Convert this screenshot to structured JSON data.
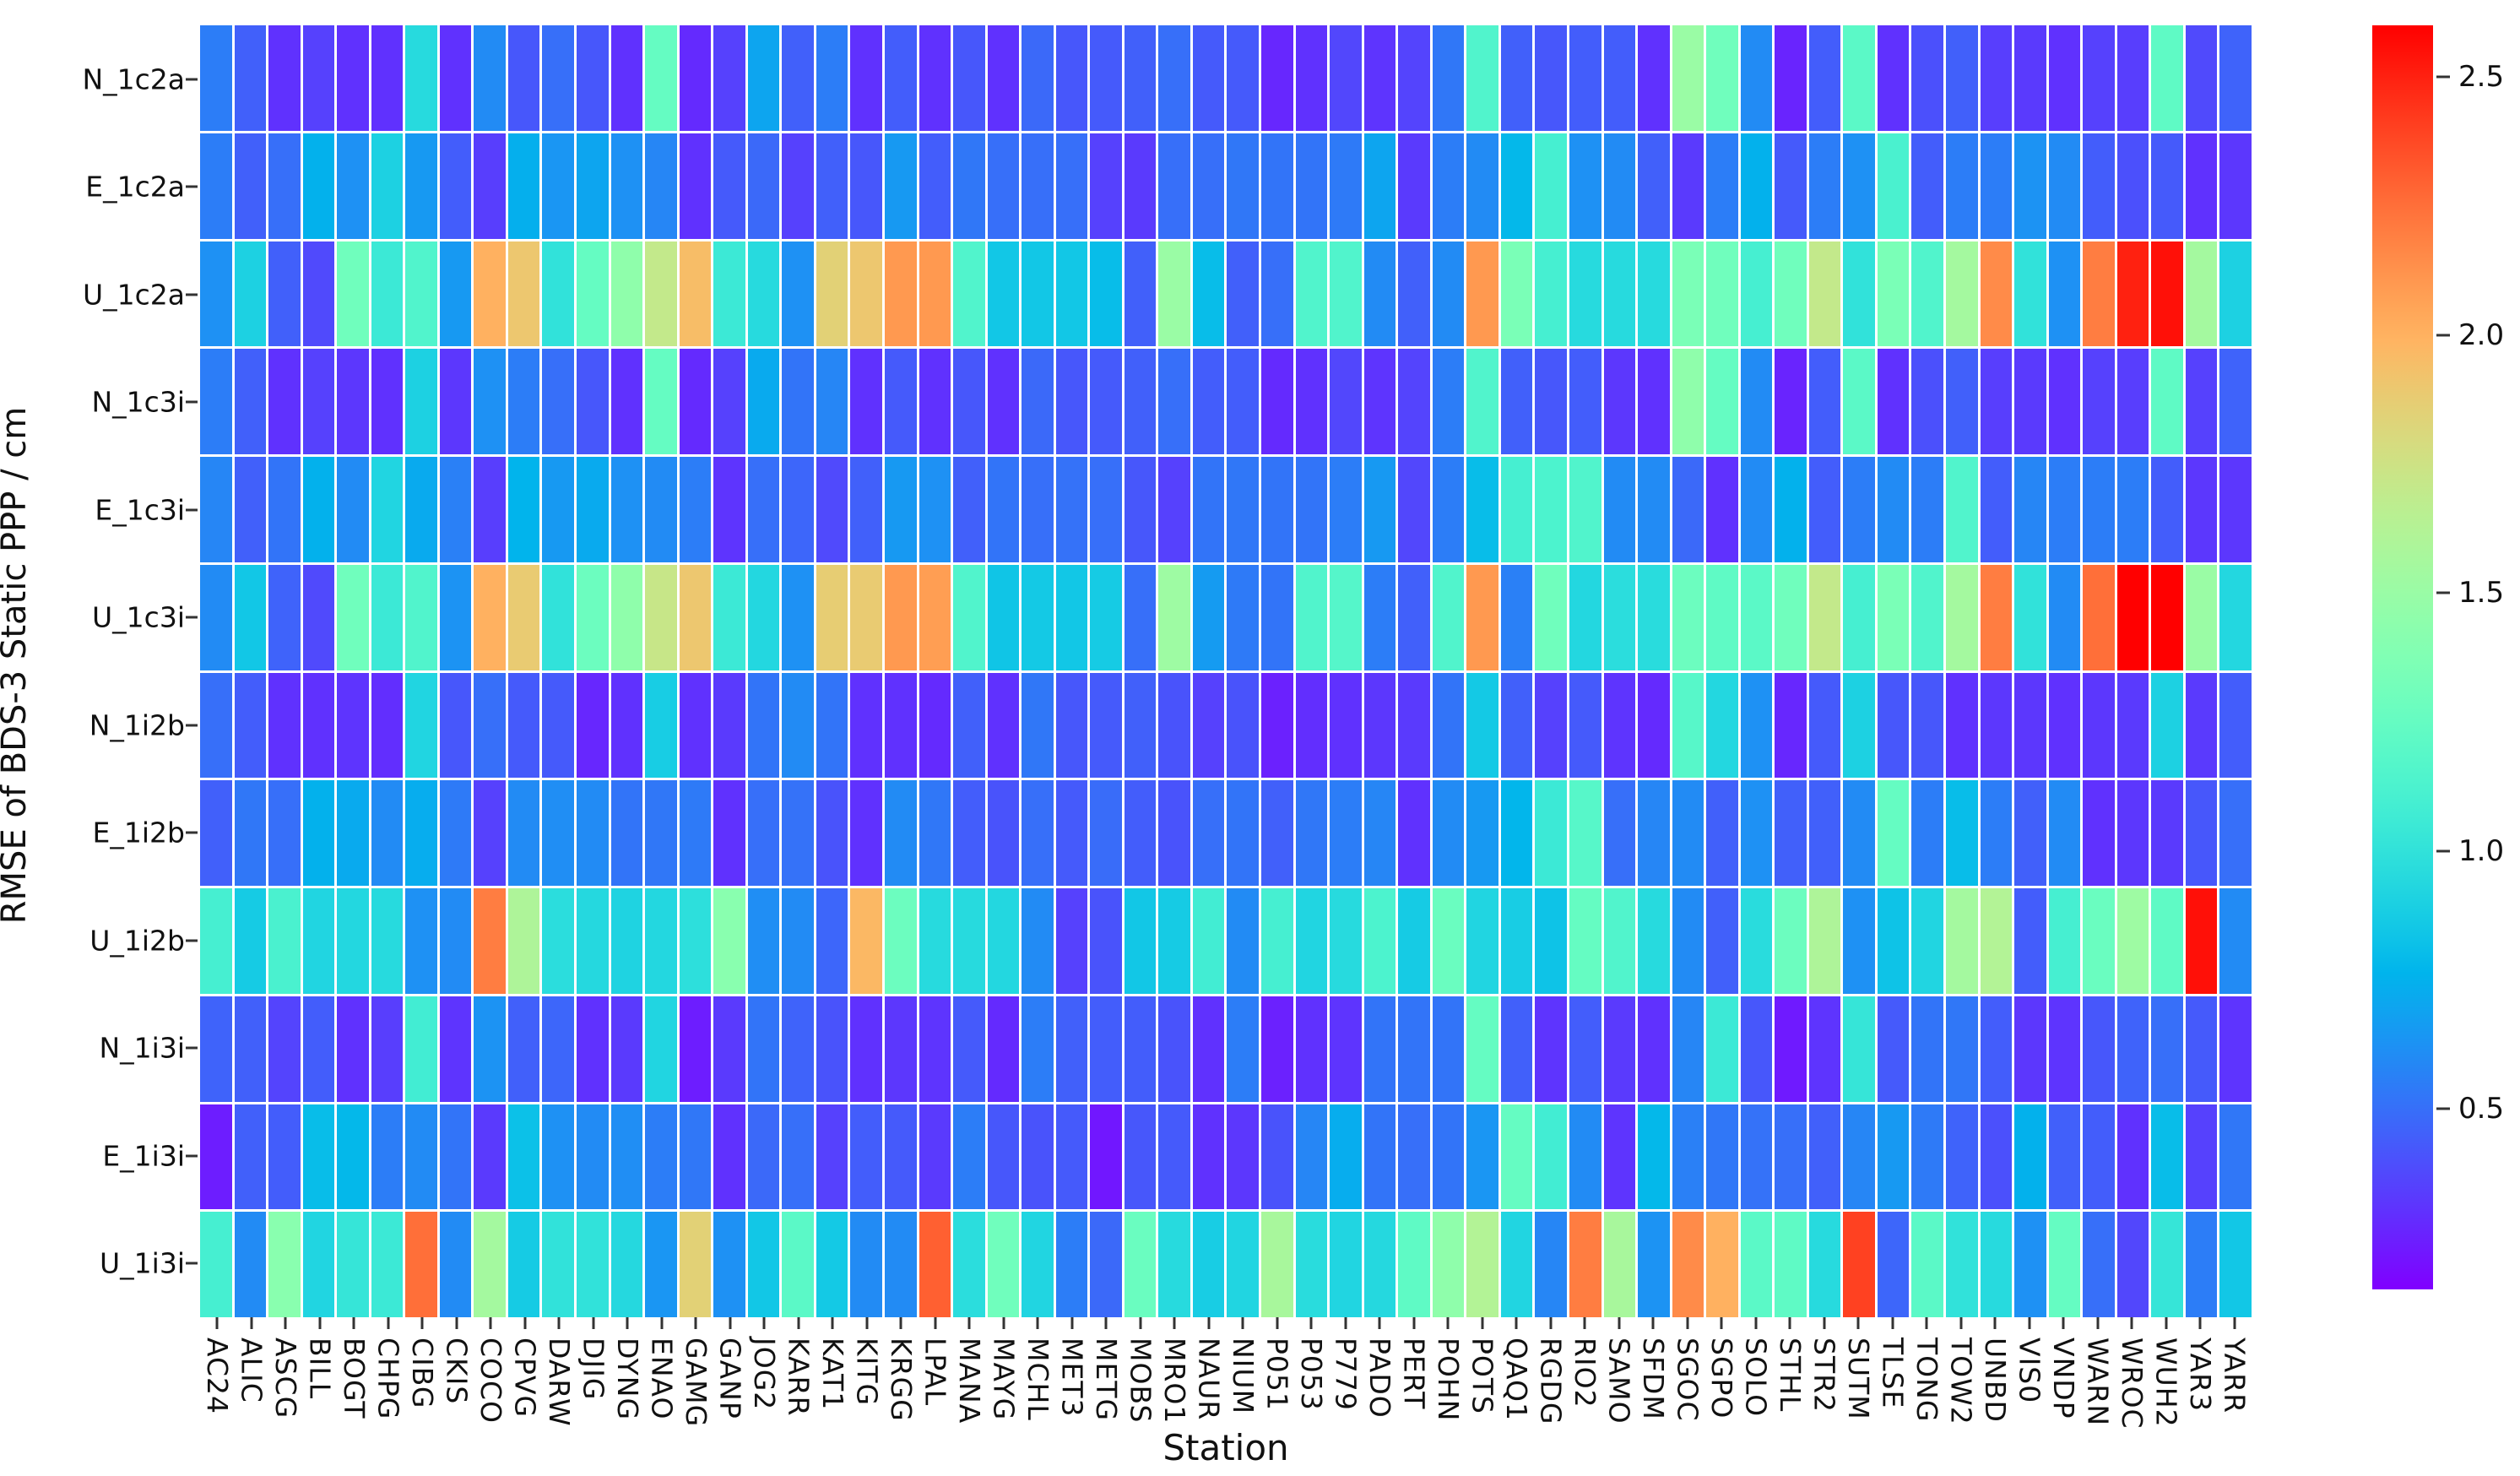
{
  "chart_data": {
    "type": "heatmap",
    "title": "",
    "xlabel": "Station",
    "ylabel": "RMSE of BDS-3 Static PPP / cm",
    "colormap": "rainbow",
    "vlim": [
      0.15,
      2.6
    ],
    "colorbar_ticks": [
      0.5,
      1.0,
      1.5,
      2.0,
      2.5
    ],
    "grid_line_color": "#ffffff",
    "background": "#ffffff",
    "legend_position": "right-colorbar",
    "x_categories": [
      "AC24",
      "ALIC",
      "ASCG",
      "BILL",
      "BOGT",
      "CHPG",
      "CIBG",
      "CKIS",
      "COCO",
      "CPVG",
      "DARW",
      "DJIG",
      "DYNG",
      "ENAO",
      "GAMG",
      "GANP",
      "JOG2",
      "KARR",
      "KAT1",
      "KITG",
      "KRGG",
      "LPAL",
      "MANA",
      "MAYG",
      "MCHL",
      "MET3",
      "METG",
      "MOBS",
      "MRO1",
      "NAUR",
      "NIUM",
      "P051",
      "P053",
      "P779",
      "PADO",
      "PERT",
      "POHN",
      "POTS",
      "QAQ1",
      "RGDG",
      "RIO2",
      "SAMO",
      "SFDM",
      "SGOC",
      "SGPO",
      "SOLO",
      "STHL",
      "STR2",
      "SUTM",
      "TLSE",
      "TONG",
      "TOW2",
      "UNBD",
      "VIS0",
      "VNDP",
      "WARN",
      "WROC",
      "WUH2",
      "YAR3",
      "YARR"
    ],
    "y_categories": [
      "N_1c2a",
      "E_1c2a",
      "U_1c2a",
      "N_1c3i",
      "E_1c3i",
      "U_1c3i",
      "N_1i2b",
      "E_1i2b",
      "U_1i2b",
      "N_1i3i",
      "E_1i3i",
      "U_1i3i"
    ],
    "values": [
      [
        0.55,
        0.45,
        0.3,
        0.35,
        0.3,
        0.3,
        0.95,
        0.3,
        0.6,
        0.42,
        0.5,
        0.42,
        0.3,
        1.25,
        0.28,
        0.35,
        0.7,
        0.45,
        0.55,
        0.3,
        0.44,
        0.3,
        0.42,
        0.3,
        0.48,
        0.42,
        0.43,
        0.45,
        0.5,
        0.43,
        0.43,
        0.27,
        0.3,
        0.37,
        0.31,
        0.36,
        0.53,
        1.15,
        0.45,
        0.42,
        0.44,
        0.44,
        0.3,
        1.5,
        1.3,
        0.6,
        0.26,
        0.44,
        1.2,
        0.3,
        0.4,
        0.45,
        0.34,
        0.33,
        0.3,
        0.35,
        0.34,
        1.22,
        0.38,
        0.46
      ],
      [
        0.55,
        0.45,
        0.5,
        0.75,
        0.62,
        0.9,
        0.65,
        0.44,
        0.34,
        0.74,
        0.64,
        0.7,
        0.62,
        0.58,
        0.3,
        0.43,
        0.48,
        0.35,
        0.45,
        0.42,
        0.65,
        0.44,
        0.53,
        0.5,
        0.5,
        0.5,
        0.35,
        0.33,
        0.5,
        0.5,
        0.53,
        0.52,
        0.52,
        0.54,
        0.7,
        0.33,
        0.55,
        0.6,
        0.78,
        1.1,
        0.62,
        0.6,
        0.45,
        0.33,
        0.55,
        0.75,
        0.43,
        0.55,
        0.62,
        1.12,
        0.44,
        0.55,
        0.55,
        0.63,
        0.6,
        0.44,
        0.4,
        0.43,
        0.3,
        0.32
      ],
      [
        0.62,
        0.9,
        0.45,
        0.38,
        1.3,
        1.05,
        1.15,
        0.65,
        2.0,
        1.9,
        1.0,
        1.25,
        1.45,
        1.7,
        1.95,
        1.05,
        0.95,
        0.62,
        1.85,
        1.9,
        2.1,
        2.1,
        1.15,
        0.85,
        0.85,
        0.85,
        0.8,
        0.45,
        1.5,
        0.8,
        0.45,
        0.5,
        1.15,
        1.15,
        0.6,
        0.45,
        0.6,
        2.1,
        1.35,
        1.1,
        0.95,
        0.95,
        0.95,
        1.35,
        1.3,
        1.1,
        1.3,
        1.7,
        1.0,
        1.35,
        1.15,
        1.55,
        2.15,
        1.0,
        0.62,
        2.2,
        2.5,
        2.55,
        1.55,
        0.9
      ],
      [
        0.55,
        0.45,
        0.3,
        0.35,
        0.32,
        0.3,
        0.9,
        0.32,
        0.62,
        0.55,
        0.5,
        0.42,
        0.3,
        1.25,
        0.28,
        0.35,
        0.72,
        0.52,
        0.58,
        0.3,
        0.43,
        0.3,
        0.42,
        0.3,
        0.48,
        0.42,
        0.43,
        0.45,
        0.5,
        0.44,
        0.44,
        0.28,
        0.3,
        0.37,
        0.31,
        0.36,
        0.55,
        1.15,
        0.45,
        0.42,
        0.44,
        0.32,
        0.3,
        1.45,
        1.25,
        0.6,
        0.26,
        0.44,
        1.2,
        0.3,
        0.4,
        0.45,
        0.34,
        0.33,
        0.3,
        0.35,
        0.34,
        1.22,
        0.35,
        0.46
      ],
      [
        0.58,
        0.45,
        0.52,
        0.75,
        0.6,
        0.92,
        0.72,
        0.56,
        0.34,
        0.76,
        0.65,
        0.72,
        0.62,
        0.6,
        0.55,
        0.31,
        0.5,
        0.47,
        0.38,
        0.45,
        0.65,
        0.62,
        0.45,
        0.52,
        0.5,
        0.51,
        0.5,
        0.42,
        0.35,
        0.52,
        0.53,
        0.52,
        0.52,
        0.55,
        0.65,
        0.37,
        0.55,
        0.8,
        1.1,
        1.13,
        1.15,
        0.6,
        0.6,
        0.48,
        0.3,
        0.6,
        0.75,
        0.44,
        0.55,
        0.6,
        0.55,
        1.15,
        0.44,
        0.58,
        0.55,
        0.55,
        0.55,
        0.44,
        0.32,
        0.32
      ],
      [
        0.6,
        0.85,
        0.46,
        0.38,
        1.3,
        1.05,
        1.15,
        0.63,
        2.0,
        1.88,
        1.0,
        1.28,
        1.45,
        1.72,
        1.9,
        1.05,
        0.93,
        0.62,
        1.87,
        1.88,
        2.1,
        2.08,
        1.15,
        0.84,
        0.86,
        0.85,
        0.87,
        0.5,
        1.52,
        0.66,
        0.54,
        0.52,
        1.15,
        1.17,
        0.55,
        0.45,
        1.15,
        2.1,
        0.56,
        1.3,
        0.93,
        0.97,
        0.96,
        1.28,
        1.22,
        1.2,
        1.3,
        1.7,
        1.1,
        1.35,
        1.15,
        1.55,
        2.2,
        1.0,
        0.6,
        2.25,
        2.6,
        2.6,
        1.5,
        0.93
      ],
      [
        0.5,
        0.44,
        0.3,
        0.3,
        0.31,
        0.29,
        0.92,
        0.42,
        0.5,
        0.43,
        0.43,
        0.27,
        0.3,
        0.88,
        0.3,
        0.33,
        0.52,
        0.6,
        0.52,
        0.3,
        0.3,
        0.28,
        0.45,
        0.3,
        0.53,
        0.42,
        0.43,
        0.45,
        0.41,
        0.35,
        0.41,
        0.25,
        0.29,
        0.3,
        0.32,
        0.33,
        0.52,
        0.86,
        0.45,
        0.35,
        0.43,
        0.31,
        0.28,
        1.18,
        0.93,
        0.62,
        0.27,
        0.43,
        0.9,
        0.42,
        0.42,
        0.3,
        0.32,
        0.32,
        0.3,
        0.32,
        0.33,
        0.9,
        0.33,
        0.44
      ],
      [
        0.45,
        0.53,
        0.5,
        0.75,
        0.72,
        0.6,
        0.73,
        0.54,
        0.35,
        0.6,
        0.61,
        0.6,
        0.52,
        0.53,
        0.54,
        0.3,
        0.5,
        0.51,
        0.41,
        0.3,
        0.6,
        0.53,
        0.44,
        0.41,
        0.5,
        0.43,
        0.49,
        0.44,
        0.41,
        0.5,
        0.52,
        0.45,
        0.53,
        0.55,
        0.58,
        0.3,
        0.6,
        0.65,
        0.77,
        1.05,
        1.18,
        0.5,
        0.58,
        0.6,
        0.45,
        0.62,
        0.45,
        0.45,
        0.6,
        1.25,
        0.55,
        0.8,
        0.55,
        0.45,
        0.6,
        0.3,
        0.32,
        0.33,
        0.42,
        0.5
      ],
      [
        1.1,
        0.87,
        1.12,
        0.92,
        0.93,
        0.95,
        0.62,
        0.6,
        2.2,
        1.6,
        0.97,
        0.94,
        0.91,
        0.93,
        0.98,
        1.42,
        0.61,
        0.6,
        0.47,
        1.97,
        1.28,
        0.95,
        0.95,
        0.93,
        0.6,
        0.35,
        0.41,
        0.85,
        0.87,
        1.08,
        0.6,
        1.1,
        0.92,
        0.95,
        1.13,
        0.87,
        1.27,
        0.92,
        0.88,
        0.83,
        1.25,
        1.15,
        0.95,
        0.6,
        0.45,
        0.96,
        1.28,
        1.6,
        0.62,
        0.83,
        0.92,
        1.55,
        1.62,
        0.44,
        1.1,
        1.27,
        1.52,
        1.22,
        2.55,
        0.6
      ],
      [
        0.46,
        0.45,
        0.36,
        0.44,
        0.3,
        0.34,
        1.08,
        0.31,
        0.63,
        0.45,
        0.47,
        0.3,
        0.33,
        0.92,
        0.24,
        0.33,
        0.52,
        0.46,
        0.41,
        0.3,
        0.32,
        0.31,
        0.43,
        0.28,
        0.55,
        0.45,
        0.44,
        0.44,
        0.41,
        0.3,
        0.55,
        0.25,
        0.3,
        0.31,
        0.52,
        0.52,
        0.52,
        1.25,
        0.45,
        0.31,
        0.44,
        0.33,
        0.3,
        0.58,
        1.05,
        0.42,
        0.23,
        0.31,
        1.02,
        0.43,
        0.52,
        0.53,
        0.44,
        0.32,
        0.31,
        0.42,
        0.46,
        0.5,
        0.43,
        0.31
      ],
      [
        0.24,
        0.45,
        0.44,
        0.8,
        0.78,
        0.55,
        0.6,
        0.52,
        0.33,
        0.82,
        0.62,
        0.6,
        0.61,
        0.55,
        0.53,
        0.3,
        0.48,
        0.5,
        0.35,
        0.44,
        0.43,
        0.33,
        0.55,
        0.42,
        0.41,
        0.43,
        0.22,
        0.42,
        0.43,
        0.3,
        0.32,
        0.41,
        0.58,
        0.73,
        0.52,
        0.5,
        0.52,
        0.64,
        1.25,
        1.08,
        0.6,
        0.31,
        0.78,
        0.56,
        0.53,
        0.51,
        0.5,
        0.45,
        0.58,
        0.65,
        0.54,
        0.46,
        0.4,
        0.75,
        0.45,
        0.44,
        0.3,
        0.8,
        0.35,
        0.53
      ],
      [
        1.1,
        0.6,
        1.42,
        0.92,
        1.02,
        1.05,
        2.25,
        0.6,
        1.55,
        0.87,
        1.0,
        1.0,
        0.94,
        0.64,
        1.85,
        0.62,
        0.85,
        1.2,
        0.86,
        0.6,
        0.6,
        2.3,
        0.97,
        1.3,
        0.92,
        0.55,
        0.48,
        1.27,
        0.95,
        0.88,
        0.92,
        1.57,
        0.96,
        0.92,
        0.94,
        1.22,
        1.45,
        1.62,
        0.92,
        0.58,
        2.2,
        1.57,
        0.63,
        2.15,
        2.0,
        1.2,
        1.22,
        0.95,
        2.4,
        0.47,
        1.2,
        1.0,
        0.95,
        0.62,
        1.25,
        0.5,
        0.37,
        1.02,
        0.55,
        0.85
      ]
    ]
  }
}
